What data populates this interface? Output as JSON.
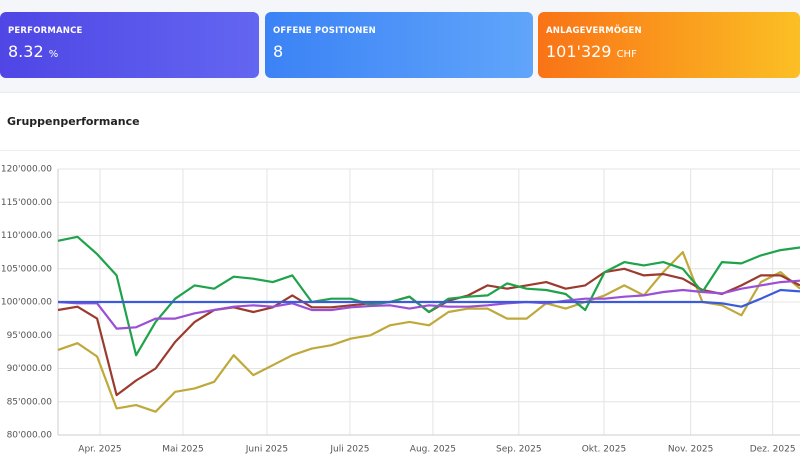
{
  "cards": [
    {
      "label": "PERFORMANCE",
      "value": "8.32",
      "unit": "%"
    },
    {
      "label": "OFFENE POSITIONEN",
      "value": "8"
    },
    {
      "label": "ANLAGEVERMÖGEN",
      "value": "101'329",
      "unit": "CHF"
    }
  ],
  "chart_data": {
    "type": "line",
    "title": "Gruppenperformance",
    "xlim": [
      0,
      38
    ],
    "xticks": [
      {
        "value": 2.15,
        "label": "Apr. 2025"
      },
      {
        "value": 6.4,
        "label": "Mai 2025"
      },
      {
        "value": 10.7,
        "label": "Juni 2025"
      },
      {
        "value": 14.95,
        "label": "Juli 2025"
      },
      {
        "value": 19.2,
        "label": "Aug. 2025"
      },
      {
        "value": 23.6,
        "label": "Sep. 2025"
      },
      {
        "value": 27.96,
        "label": "Okt. 2025"
      },
      {
        "value": 32.4,
        "label": "Nov. 2025"
      },
      {
        "value": 36.6,
        "label": "Dez. 2025"
      }
    ],
    "ylim": [
      80000,
      120000
    ],
    "yticks": [
      {
        "value": 80000,
        "label": "80'000.00"
      },
      {
        "value": 85000,
        "label": "85'000.00"
      },
      {
        "value": 90000,
        "label": "90'000.00"
      },
      {
        "value": 95000,
        "label": "95'000.00"
      },
      {
        "value": 100000,
        "label": "100'000.00"
      },
      {
        "value": 105000,
        "label": "105'000.00"
      },
      {
        "value": 110000,
        "label": "110'000.00"
      },
      {
        "value": 115000,
        "label": "115'000.00"
      },
      {
        "value": 120000,
        "label": "120'000.00"
      }
    ],
    "grid": true,
    "series": [
      {
        "color": "#bfa93a",
        "values": [
          92800,
          93800,
          91800,
          84000,
          84500,
          83500,
          86500,
          87000,
          88000,
          92000,
          89000,
          90500,
          92000,
          93000,
          93500,
          94500,
          95000,
          96500,
          97000,
          96500,
          98500,
          99000,
          99000,
          97500,
          97500,
          99800,
          99000,
          100000,
          101000,
          102500,
          101000,
          104500,
          107500,
          100000,
          99500,
          98000,
          103000,
          104500,
          102000
        ]
      },
      {
        "color": "#9b3b2e",
        "values": [
          98800,
          99300,
          97500,
          86000,
          88200,
          90000,
          94000,
          97000,
          98800,
          99200,
          98500,
          99200,
          101000,
          99200,
          99200,
          99500,
          99800,
          100000,
          100800,
          98500,
          100200,
          101000,
          102500,
          102000,
          102500,
          103000,
          102000,
          102500,
          104500,
          105000,
          104000,
          104200,
          103500,
          101800,
          101200,
          102500,
          104000,
          104000,
          102500
        ]
      },
      {
        "color": "#1fa34a",
        "values": [
          109200,
          109800,
          107200,
          104000,
          92000,
          97000,
          100500,
          102500,
          102000,
          103800,
          103500,
          103000,
          104000,
          100000,
          100500,
          100500,
          99600,
          100000,
          100800,
          98500,
          100500,
          100800,
          101000,
          102800,
          102000,
          101800,
          101200,
          98800,
          104500,
          106000,
          105500,
          106000,
          105000,
          101500,
          106000,
          105800,
          107000,
          107800,
          108200
        ]
      },
      {
        "color": "#9b4fd6",
        "values": [
          100000,
          99800,
          99800,
          96000,
          96200,
          97500,
          97500,
          98300,
          98800,
          99300,
          99500,
          99300,
          99800,
          98800,
          98800,
          99200,
          99400,
          99500,
          99000,
          99500,
          99300,
          99300,
          99500,
          99800,
          100000,
          99800,
          100200,
          100500,
          100500,
          100800,
          101000,
          101500,
          101800,
          101500,
          101300,
          102000,
          102500,
          103000,
          103200
        ]
      },
      {
        "color": "#3b5bdb",
        "values": [
          100000,
          100000,
          100000,
          100000,
          100000,
          100000,
          100000,
          100000,
          100000,
          100000,
          100000,
          100000,
          100000,
          100000,
          100000,
          100000,
          100000,
          100000,
          100000,
          100000,
          100000,
          100000,
          100000,
          100000,
          100000,
          100000,
          100000,
          100000,
          100000,
          100000,
          100000,
          100000,
          100000,
          100000,
          99800,
          99300,
          100500,
          101800,
          101600
        ]
      }
    ]
  }
}
